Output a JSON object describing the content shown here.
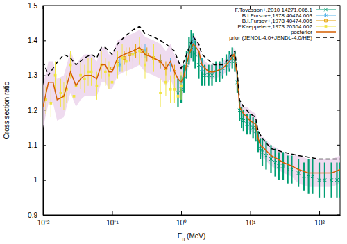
{
  "chart_data": {
    "type": "scatter",
    "x_label": "En (MeV)",
    "y_label": "Cross section ratio",
    "log": "x",
    "legend": "top-right",
    "xlim": [
      0.01,
      200
    ],
    "ylim": [
      0.9,
      1.5
    ],
    "xticks": [
      {
        "value": 0.01,
        "label": "10⁻²"
      },
      {
        "value": 0.1,
        "label": "10⁻¹"
      },
      {
        "value": 1,
        "label": "10⁰"
      },
      {
        "value": 10,
        "label": "10¹"
      },
      {
        "value": 100,
        "label": "10²"
      }
    ],
    "yticks": [
      0.9,
      1,
      1.1,
      1.2,
      1.3,
      1.4,
      1.5
    ],
    "series": [
      {
        "name": "F.Tovesson+,2010 14271.006.1",
        "color": "#009e73",
        "type": "scatter",
        "marker": "cross",
        "x": [
          0.9,
          1.0,
          1.1,
          1.2,
          1.3,
          1.4,
          1.5,
          1.6,
          1.8,
          2.0,
          2.2,
          2.5,
          2.8,
          3.2,
          3.6,
          4.0,
          4.5,
          5.0,
          5.5,
          6.0,
          6.5,
          7.0,
          7.5,
          8,
          9,
          10,
          11,
          12,
          13,
          14,
          15,
          17,
          20,
          23,
          26,
          30,
          35,
          40,
          50,
          60,
          70,
          80,
          100,
          120,
          150,
          180,
          200
        ],
        "values": [
          1.25,
          1.26,
          1.29,
          1.33,
          1.37,
          1.39,
          1.38,
          1.36,
          1.33,
          1.31,
          1.3,
          1.3,
          1.3,
          1.31,
          1.31,
          1.32,
          1.33,
          1.34,
          1.35,
          1.34,
          1.28,
          1.2,
          1.18,
          1.17,
          1.16,
          1.16,
          1.15,
          1.14,
          1.11,
          1.09,
          1.08,
          1.07,
          1.06,
          1.05,
          1.04,
          1.04,
          1.03,
          1.03,
          1.02,
          1.01,
          1.01,
          1.01,
          1.0,
          1.0,
          1.0,
          1.0,
          1.0
        ],
        "errors": [
          0.04,
          0.04,
          0.04,
          0.04,
          0.04,
          0.04,
          0.04,
          0.04,
          0.04,
          0.04,
          0.03,
          0.03,
          0.03,
          0.03,
          0.03,
          0.03,
          0.03,
          0.03,
          0.03,
          0.03,
          0.03,
          0.03,
          0.03,
          0.03,
          0.03,
          0.03,
          0.03,
          0.03,
          0.03,
          0.03,
          0.04,
          0.04,
          0.04,
          0.04,
          0.04,
          0.04,
          0.04,
          0.04,
          0.04,
          0.04,
          0.05,
          0.05,
          0.05,
          0.05,
          0.05,
          0.05,
          0.05
        ]
      },
      {
        "name": "B.I.Fursov+,1978 40474.003",
        "color": "#56b4e9",
        "type": "scatter",
        "marker": "star",
        "x": [
          0.13,
          0.2,
          0.3,
          0.5,
          0.7,
          1.0,
          1.5,
          2.0,
          3.0,
          4.0,
          5.0
        ],
        "values": [
          1.33,
          1.36,
          1.37,
          1.34,
          1.33,
          1.28,
          1.39,
          1.33,
          1.31,
          1.32,
          1.34
        ],
        "errors": [
          0.02,
          0.02,
          0.02,
          0.02,
          0.02,
          0.02,
          0.02,
          0.02,
          0.02,
          0.02,
          0.02
        ]
      },
      {
        "name": "B.I.Fursov+,1978 40474.005",
        "color": "#e69f00",
        "type": "scatter",
        "marker": "open-square",
        "x": [
          0.1,
          0.12,
          0.15,
          0.18,
          0.22,
          0.27,
          0.32,
          0.4,
          0.5,
          0.6,
          0.8
        ],
        "values": [
          1.32,
          1.34,
          1.35,
          1.36,
          1.37,
          1.37,
          1.36,
          1.35,
          1.34,
          1.32,
          1.31
        ],
        "errors": [
          0.02,
          0.02,
          0.02,
          0.02,
          0.02,
          0.02,
          0.02,
          0.02,
          0.02,
          0.02,
          0.02
        ]
      },
      {
        "name": "F.Kaeppeler+,1973 20364.002",
        "color": "#f0e442",
        "type": "scatter",
        "marker": "filled-square",
        "x": [
          0.011,
          0.013,
          0.015,
          0.018,
          0.02,
          0.022,
          0.025,
          0.028,
          0.03,
          0.035,
          0.04,
          0.045,
          0.05,
          0.06,
          0.07,
          0.08,
          0.09,
          0.1,
          0.12,
          0.14,
          0.16,
          0.2,
          0.25,
          0.3,
          0.4,
          0.5,
          0.6,
          0.7,
          0.8,
          0.9,
          1.0
        ],
        "values": [
          1.23,
          1.22,
          1.3,
          1.25,
          1.24,
          1.26,
          1.33,
          1.24,
          1.27,
          1.3,
          1.29,
          1.31,
          1.31,
          1.27,
          1.33,
          1.31,
          1.3,
          1.28,
          1.33,
          1.35,
          1.34,
          1.36,
          1.37,
          1.33,
          1.35,
          1.25,
          1.28,
          1.26,
          1.26,
          1.24,
          1.27
        ],
        "errors": [
          0.04,
          0.04,
          0.04,
          0.04,
          0.04,
          0.04,
          0.04,
          0.04,
          0.04,
          0.04,
          0.04,
          0.04,
          0.04,
          0.04,
          0.04,
          0.04,
          0.04,
          0.04,
          0.04,
          0.04,
          0.04,
          0.04,
          0.04,
          0.04,
          0.04,
          0.04,
          0.04,
          0.04,
          0.04,
          0.04,
          0.04
        ]
      },
      {
        "name": "posterior",
        "color": "#d55e00",
        "type": "line",
        "line_style": "solid",
        "x": [
          0.01,
          0.012,
          0.014,
          0.016,
          0.02,
          0.025,
          0.03,
          0.035,
          0.04,
          0.05,
          0.06,
          0.07,
          0.08,
          0.09,
          0.1,
          0.12,
          0.15,
          0.2,
          0.25,
          0.3,
          0.4,
          0.5,
          0.6,
          0.7,
          0.8,
          0.9,
          1.0,
          1.1,
          1.3,
          1.5,
          1.8,
          2.0,
          2.5,
          3,
          4,
          5,
          5.8,
          6.5,
          7,
          8,
          9,
          10,
          12,
          13,
          14,
          16,
          20,
          25,
          30,
          40,
          50,
          70,
          100,
          150,
          200
        ],
        "values": [
          1.21,
          1.28,
          1.28,
          1.23,
          1.24,
          1.31,
          1.27,
          1.29,
          1.3,
          1.3,
          1.29,
          1.33,
          1.33,
          1.31,
          1.31,
          1.35,
          1.36,
          1.37,
          1.38,
          1.36,
          1.35,
          1.34,
          1.32,
          1.34,
          1.31,
          1.29,
          1.28,
          1.3,
          1.36,
          1.39,
          1.37,
          1.33,
          1.31,
          1.31,
          1.32,
          1.34,
          1.36,
          1.3,
          1.21,
          1.19,
          1.18,
          1.17,
          1.16,
          1.12,
          1.1,
          1.09,
          1.07,
          1.06,
          1.05,
          1.04,
          1.03,
          1.02,
          1.02,
          1.02,
          1.03
        ],
        "errors": [
          0.06,
          0.06,
          0.06,
          0.06,
          0.06,
          0.06,
          0.06,
          0.06,
          0.06,
          0.06,
          0.05,
          0.05,
          0.05,
          0.05,
          0.05,
          0.05,
          0.05,
          0.05,
          0.05,
          0.05,
          0.05,
          0.05,
          0.05,
          0.05,
          0.05,
          0.05,
          0.05,
          0.03,
          0.03,
          0.03,
          0.02,
          0.02,
          0.02,
          0.02,
          0.02,
          0.02,
          0.02,
          0.02,
          0.02,
          0.02,
          0.03,
          0.03,
          0.03,
          0.03,
          0.03,
          0.03,
          0.03,
          0.03,
          0.03,
          0.03,
          0.04,
          0.04,
          0.04,
          0.04,
          0.04
        ]
      },
      {
        "name": "prior (JENDL-4.0+JENDL-4.0/HE)",
        "color": "#000000",
        "type": "line",
        "line_style": "dashed",
        "x": [
          0.01,
          0.012,
          0.015,
          0.02,
          0.025,
          0.03,
          0.04,
          0.05,
          0.06,
          0.07,
          0.08,
          0.1,
          0.12,
          0.15,
          0.2,
          0.25,
          0.3,
          0.4,
          0.5,
          0.6,
          0.8,
          1.0,
          1.2,
          1.5,
          1.8,
          2,
          3,
          4,
          5,
          6,
          6.5,
          7,
          8,
          10,
          12,
          13,
          15,
          20,
          30,
          50,
          100,
          200
        ],
        "values": [
          1.34,
          1.3,
          1.33,
          1.36,
          1.35,
          1.33,
          1.35,
          1.36,
          1.35,
          1.38,
          1.38,
          1.36,
          1.39,
          1.41,
          1.43,
          1.44,
          1.42,
          1.41,
          1.4,
          1.39,
          1.37,
          1.32,
          1.36,
          1.41,
          1.39,
          1.36,
          1.33,
          1.33,
          1.35,
          1.37,
          1.31,
          1.23,
          1.21,
          1.19,
          1.18,
          1.14,
          1.12,
          1.09,
          1.08,
          1.07,
          1.06,
          1.06
        ]
      }
    ]
  }
}
